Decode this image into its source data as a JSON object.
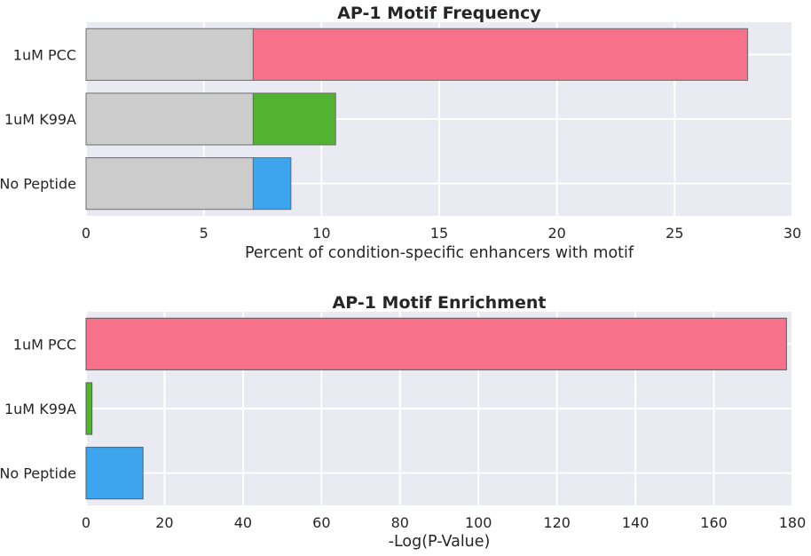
{
  "chart_data": [
    {
      "type": "bar",
      "orientation": "horizontal",
      "stacked": true,
      "title": "AP-1 Motif Frequency",
      "xlabel": "Percent of condition-specific enhancers with motif",
      "ylabel": "",
      "categories": [
        "1uM PCC",
        "1uM K99A",
        "No Peptide"
      ],
      "series": [
        {
          "values": [
            7.1,
            7.1,
            7.1
          ],
          "colors": [
            "#cccccc",
            "#cccccc",
            "#cccccc"
          ]
        },
        {
          "values": [
            21.0,
            3.5,
            1.6
          ],
          "colors": [
            "#f7718a",
            "#52b332",
            "#3ca5ee"
          ]
        }
      ],
      "xlim": [
        0,
        30
      ],
      "xticks": [
        "0",
        "5",
        "10",
        "15",
        "20",
        "25",
        "30"
      ],
      "grid": true
    },
    {
      "type": "bar",
      "orientation": "horizontal",
      "stacked": false,
      "title": "AP-1 Motif Enrichment",
      "xlabel": "-Log(P-Value)",
      "ylabel": "",
      "categories": [
        "1uM PCC",
        "1uM K99A",
        "No Peptide"
      ],
      "values": [
        178.5,
        1.5,
        14.5
      ],
      "colors": [
        "#f7718a",
        "#52b332",
        "#3ca5ee"
      ],
      "xlim": [
        0,
        180
      ],
      "xticks": [
        "0",
        "20",
        "40",
        "60",
        "80",
        "100",
        "120",
        "140",
        "160",
        "180"
      ],
      "grid": true
    }
  ]
}
